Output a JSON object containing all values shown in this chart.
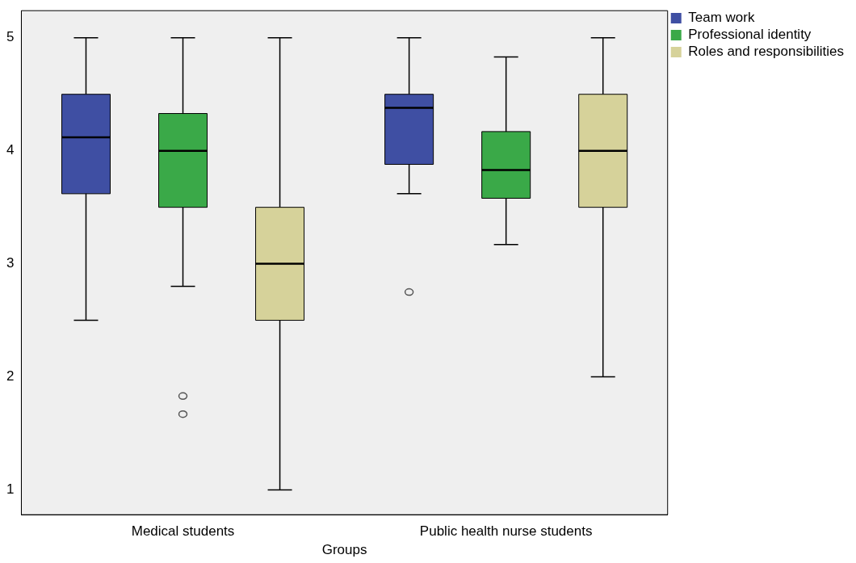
{
  "chart_data": {
    "type": "box",
    "xlabel": "Groups",
    "categories": [
      "Medical students",
      "Public health nurse students"
    ],
    "ylim": [
      0.78,
      5.24
    ],
    "yticks": [
      1,
      2,
      3,
      4,
      5
    ],
    "grid": false,
    "legend": "top right",
    "series": [
      {
        "name": "Team work",
        "color": "#3f4fa3",
        "boxes": [
          {
            "low": 2.5,
            "q1": 3.62,
            "median": 4.12,
            "q3": 4.5,
            "high": 5
          },
          {
            "low": 3.62,
            "q1": 3.88,
            "median": 4.38,
            "q3": 4.5,
            "high": 5,
            "outliers": [
              2.75
            ]
          }
        ]
      },
      {
        "name": "Professional identity",
        "color": "#3aa948",
        "boxes": [
          {
            "low": 2.8,
            "q1": 3.5,
            "median": 4,
            "q3": 4.33,
            "high": 5,
            "outliers": [
              1.83,
              1.67
            ]
          },
          {
            "low": 3.17,
            "q1": 3.58,
            "median": 3.83,
            "q3": 4.17,
            "high": 4.83
          }
        ]
      },
      {
        "name": "Roles and responsibilities",
        "color": "#d6d29a",
        "boxes": [
          {
            "low": 1,
            "q1": 2.5,
            "median": 3,
            "q3": 3.5,
            "high": 5
          },
          {
            "low": 2,
            "q1": 3.5,
            "median": 4,
            "q3": 4.5,
            "high": 5
          }
        ]
      }
    ]
  }
}
